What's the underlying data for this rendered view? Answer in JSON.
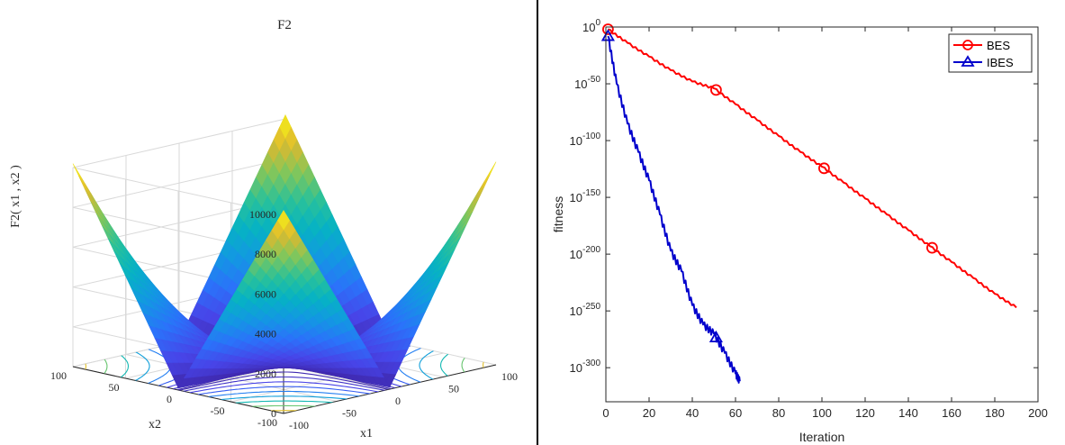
{
  "divider_color": "#000000",
  "chart_data": [
    {
      "type": "surface",
      "title": "F2",
      "xlabel": "x1",
      "ylabel": "x2",
      "zlabel": "F2( x1 , x2 )",
      "x_range": [
        -100,
        100
      ],
      "y_range": [
        -100,
        100
      ],
      "zlim": [
        0,
        10000
      ],
      "x_ticks": [
        "-100",
        "-50",
        "0",
        "50",
        "100"
      ],
      "y_ticks": [
        "-100",
        "-50",
        "0",
        "50",
        "100"
      ],
      "z_ticks": [
        "0",
        "2000",
        "4000",
        "6000",
        "8000",
        "10000"
      ],
      "function": "|x1| + |x2| + |x1|*|x2|",
      "corner_values": [
        {
          "x": -100,
          "y": -100,
          "z": 10200
        },
        {
          "x": 100,
          "y": -100,
          "z": 10200
        },
        {
          "x": 100,
          "y": 100,
          "z": 10200
        },
        {
          "x": -100,
          "y": 100,
          "z": 10200
        }
      ],
      "contours_on_floor": true,
      "colormap": "parula",
      "grid": true
    },
    {
      "type": "line",
      "xlabel": "Iteration",
      "ylabel": "fitness",
      "xlim": [
        0,
        200
      ],
      "ylim_exponent": [
        -330,
        0
      ],
      "y_scale": "log",
      "x_ticks": [
        "0",
        "20",
        "40",
        "60",
        "80",
        "100",
        "120",
        "140",
        "160",
        "180",
        "200"
      ],
      "y_tick_base": "10",
      "y_tick_exponents": [
        "0",
        "-50",
        "-100",
        "-150",
        "-200",
        "-250",
        "-300"
      ],
      "legend_position": "top-right",
      "series": [
        {
          "name": "BES",
          "color": "#ff0000",
          "marker": "circle",
          "marker_x": [
            1,
            51,
            101,
            151
          ],
          "log10_points": [
            [
              1,
              -2
            ],
            [
              10,
              -14
            ],
            [
              20,
              -26
            ],
            [
              30,
              -38
            ],
            [
              40,
              -48
            ],
            [
              50,
              -54
            ],
            [
              60,
              -68
            ],
            [
              70,
              -82
            ],
            [
              80,
              -96
            ],
            [
              90,
              -110
            ],
            [
              100,
              -123
            ],
            [
              110,
              -137
            ],
            [
              120,
              -151
            ],
            [
              130,
              -165
            ],
            [
              140,
              -179
            ],
            [
              150,
              -193
            ],
            [
              160,
              -207
            ],
            [
              170,
              -221
            ],
            [
              180,
              -235
            ],
            [
              190,
              -247
            ]
          ]
        },
        {
          "name": "IBES",
          "color": "#0000cc",
          "marker": "triangle",
          "marker_x": [
            1,
            51
          ],
          "log10_points": [
            [
              1,
              -8
            ],
            [
              5,
              -50
            ],
            [
              10,
              -85
            ],
            [
              15,
              -110
            ],
            [
              20,
              -135
            ],
            [
              25,
              -165
            ],
            [
              30,
              -197
            ],
            [
              35,
              -215
            ],
            [
              40,
              -245
            ],
            [
              45,
              -262
            ],
            [
              50,
              -270
            ],
            [
              55,
              -287
            ],
            [
              60,
              -305
            ],
            [
              62,
              -312
            ]
          ]
        }
      ]
    }
  ]
}
